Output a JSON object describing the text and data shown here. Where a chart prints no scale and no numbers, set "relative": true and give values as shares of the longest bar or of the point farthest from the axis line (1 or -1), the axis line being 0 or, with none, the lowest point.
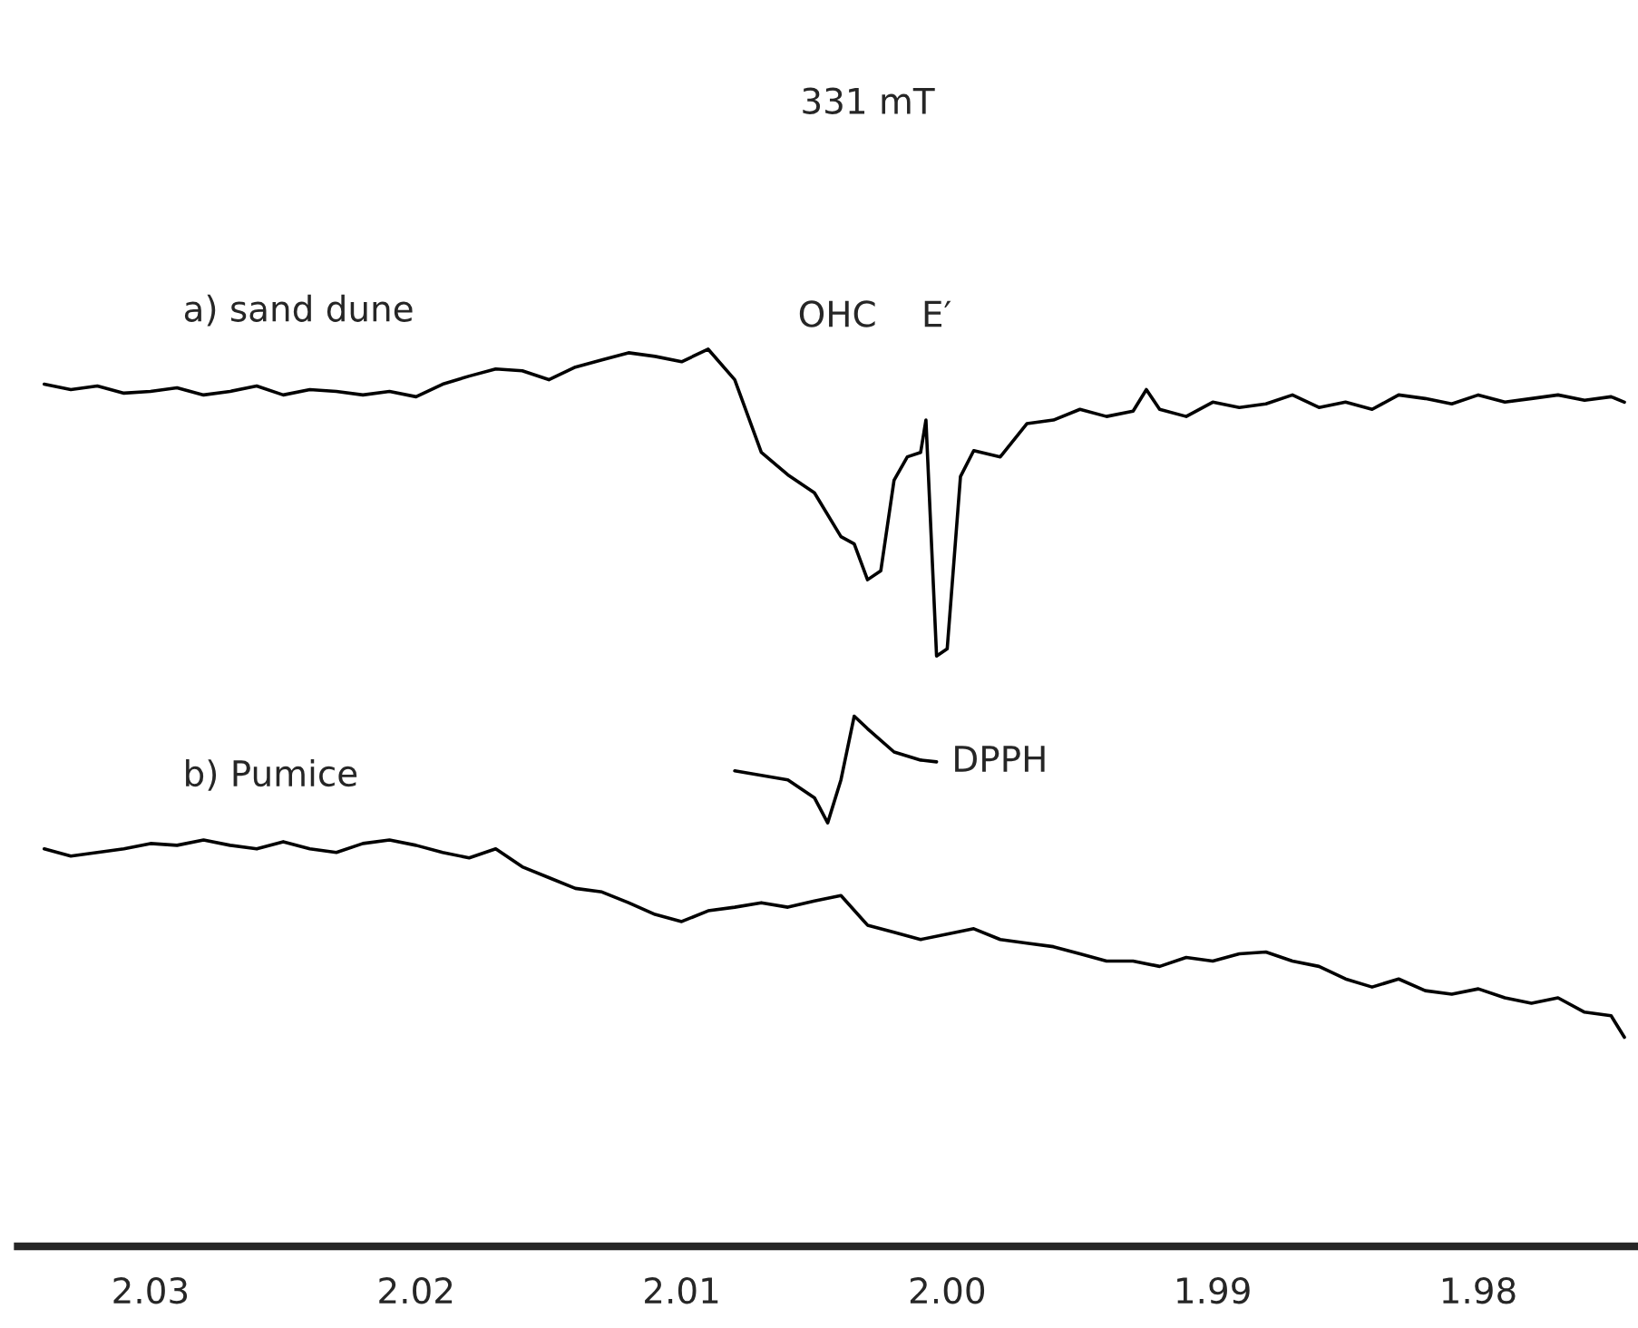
{
  "chart_data": {
    "type": "line",
    "relative": true,
    "xlim": [
      2.035,
      1.974
    ],
    "xticks": [
      2.03,
      2.02,
      2.01,
      {
        "value": 2.0,
        "label": "2.00"
      },
      1.99,
      1.98
    ],
    "grid": false,
    "legend": false,
    "marker": "none",
    "line_style": "solid",
    "series": [
      {
        "name": "a) sand dune",
        "color": "#000000",
        "x": [
          2.034,
          2.033,
          2.032,
          2.031,
          2.03,
          2.029,
          2.028,
          2.027,
          2.026,
          2.025,
          2.024,
          2.023,
          2.022,
          2.021,
          2.02,
          2.019,
          2.018,
          2.017,
          2.016,
          2.015,
          2.014,
          2.013,
          2.012,
          2.011,
          2.01,
          2.009,
          2.008,
          2.007,
          2.006,
          2.005,
          2.004,
          2.0035,
          2.003,
          2.0025,
          2.002,
          2.0015,
          2.001,
          2.0008,
          2.0004,
          2.0,
          1.9995,
          1.999,
          1.998,
          1.997,
          1.996,
          1.995,
          1.994,
          1.993,
          1.9925,
          1.992,
          1.991,
          1.99,
          1.989,
          1.988,
          1.987,
          1.986,
          1.985,
          1.984,
          1.983,
          1.982,
          1.981,
          1.98,
          1.979,
          1.978,
          1.977,
          1.976,
          1.975,
          1.9745
        ],
        "values": [
          0.961,
          0.955,
          0.959,
          0.951,
          0.953,
          0.957,
          0.949,
          0.953,
          0.959,
          0.949,
          0.955,
          0.953,
          0.949,
          0.953,
          0.947,
          0.961,
          0.97,
          0.978,
          0.976,
          0.966,
          0.98,
          0.988,
          0.996,
          0.992,
          0.986,
          1.0,
          0.966,
          0.885,
          0.86,
          0.84,
          0.791,
          0.783,
          0.743,
          0.753,
          0.854,
          0.88,
          0.885,
          0.921,
          0.658,
          0.666,
          0.858,
          0.887,
          0.88,
          0.917,
          0.921,
          0.933,
          0.925,
          0.931,
          0.955,
          0.933,
          0.925,
          0.941,
          0.935,
          0.939,
          0.949,
          0.935,
          0.941,
          0.933,
          0.949,
          0.945,
          0.939,
          0.949,
          0.941,
          0.945,
          0.949,
          0.943,
          0.947,
          0.941
        ]
      },
      {
        "name": "b) Pumice",
        "color": "#000000",
        "x": [
          2.034,
          2.033,
          2.032,
          2.031,
          2.03,
          2.029,
          2.028,
          2.027,
          2.026,
          2.025,
          2.024,
          2.023,
          2.022,
          2.021,
          2.02,
          2.019,
          2.018,
          2.017,
          2.016,
          2.015,
          2.014,
          2.013,
          2.012,
          2.011,
          2.01,
          2.009,
          2.008,
          2.007,
          2.006,
          2.005,
          2.004,
          2.003,
          2.002,
          2.001,
          2.0,
          1.999,
          1.998,
          1.997,
          1.996,
          1.995,
          1.994,
          1.993,
          1.992,
          1.991,
          1.99,
          1.989,
          1.988,
          1.987,
          1.986,
          1.985,
          1.984,
          1.983,
          1.982,
          1.981,
          1.98,
          1.979,
          1.978,
          1.977,
          1.976,
          1.975,
          1.9745
        ],
        "values": [
          0.443,
          0.435,
          0.439,
          0.443,
          0.449,
          0.447,
          0.453,
          0.447,
          0.443,
          0.451,
          0.443,
          0.439,
          0.449,
          0.453,
          0.447,
          0.439,
          0.433,
          0.443,
          0.423,
          0.411,
          0.399,
          0.395,
          0.383,
          0.37,
          0.362,
          0.374,
          0.378,
          0.383,
          0.378,
          0.385,
          0.391,
          0.358,
          0.35,
          0.342,
          0.348,
          0.354,
          0.342,
          0.338,
          0.334,
          0.326,
          0.318,
          0.318,
          0.312,
          0.322,
          0.318,
          0.326,
          0.328,
          0.318,
          0.312,
          0.298,
          0.289,
          0.298,
          0.285,
          0.281,
          0.287,
          0.277,
          0.271,
          0.277,
          0.261,
          0.257,
          0.233
        ]
      },
      {
        "name": "DPPH",
        "color": "#000000",
        "x": [
          2.008,
          2.006,
          2.005,
          2.0045,
          2.004,
          2.0035,
          2.003,
          2.002,
          2.001,
          2.0004
        ],
        "values": [
          0.53,
          0.52,
          0.5,
          0.472,
          0.52,
          0.591,
          0.577,
          0.551,
          0.542,
          0.54
        ]
      }
    ],
    "annotations": [
      "OHC",
      "E′",
      "331 mT"
    ]
  }
}
